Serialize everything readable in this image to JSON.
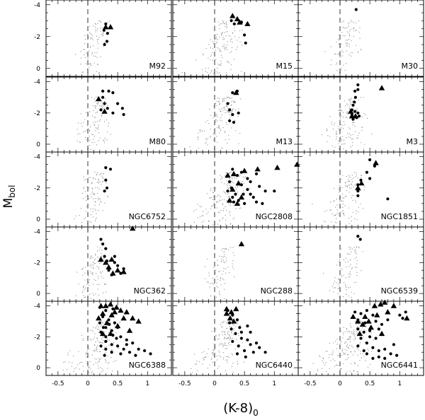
{
  "chart_data": {
    "type": "scatter",
    "xlabel_main": "(K-8)",
    "xlabel_sub": "0",
    "ylabel_main": "M",
    "ylabel_sub": "bol",
    "xlim": [
      -0.7,
      1.4
    ],
    "ylim": [
      0.5,
      -4.3
    ],
    "x_ticks": [
      -0.5,
      0,
      0.5,
      1
    ],
    "x_tick_labels": [
      "-0.5",
      "0",
      "0.5",
      "1"
    ],
    "y_ticks": [
      -4,
      -2,
      0
    ],
    "y_tick_labels": [
      "-4",
      "-2",
      "0"
    ],
    "reference_line_x": 0,
    "grid": false,
    "legend": "none",
    "series_styles": {
      "background_stars": "small grey dots",
      "variables_dot": "filled black circles",
      "variables_triangle": "filled black triangles"
    },
    "panels": [
      {
        "label": "M92",
        "cloud": 0.7,
        "tip_x": 0.2,
        "dots": [
          [
            0.3,
            -2.8
          ],
          [
            0.27,
            -2.4
          ],
          [
            0.33,
            -2.2
          ],
          [
            0.32,
            -1.7
          ],
          [
            0.28,
            -1.5
          ]
        ],
        "triangles": [
          [
            0.3,
            -2.6
          ],
          [
            0.38,
            -2.6
          ]
        ]
      },
      {
        "label": "M15",
        "cloud": 1.0,
        "tip_x": 0.25,
        "dots": [
          [
            0.28,
            -3.0
          ],
          [
            0.33,
            -2.8
          ],
          [
            0.45,
            -2.9
          ],
          [
            0.5,
            -2.1
          ],
          [
            0.52,
            -1.6
          ]
        ],
        "triangles": [
          [
            0.3,
            -3.3
          ],
          [
            0.38,
            -3.1
          ],
          [
            0.42,
            -2.9
          ],
          [
            0.55,
            -2.8
          ]
        ]
      },
      {
        "label": "M30",
        "cloud": 0.65,
        "tip_x": 0.2,
        "dots": [
          [
            0.27,
            -3.7
          ]
        ],
        "triangles": []
      },
      {
        "label": "M80",
        "cloud": 0.8,
        "tip_x": 0.2,
        "dots": [
          [
            0.25,
            -3.4
          ],
          [
            0.35,
            -3.4
          ],
          [
            0.42,
            -3.3
          ],
          [
            0.25,
            -3.0
          ],
          [
            0.28,
            -2.6
          ],
          [
            0.33,
            -2.3
          ],
          [
            0.5,
            -2.6
          ],
          [
            0.58,
            -2.3
          ],
          [
            0.6,
            -1.9
          ],
          [
            0.42,
            -2.0
          ],
          [
            0.22,
            -2.2
          ]
        ],
        "triangles": [
          [
            0.18,
            -2.9
          ],
          [
            0.28,
            -2.1
          ]
        ]
      },
      {
        "label": "M13",
        "cloud": 1.1,
        "tip_x": 0.22,
        "dots": [
          [
            0.3,
            -3.3
          ],
          [
            0.38,
            -3.4
          ],
          [
            0.22,
            -2.6
          ],
          [
            0.25,
            -2.2
          ],
          [
            0.3,
            -1.9
          ],
          [
            0.32,
            -1.4
          ],
          [
            0.25,
            -1.5
          ],
          [
            0.4,
            -2.0
          ]
        ],
        "triangles": [
          [
            0.36,
            -3.3
          ]
        ]
      },
      {
        "label": "M3",
        "cloud": 1.0,
        "tip_x": 0.22,
        "dots": [
          [
            0.3,
            -3.8
          ],
          [
            0.3,
            -3.5
          ],
          [
            0.25,
            -3.4
          ],
          [
            0.26,
            -3.0
          ],
          [
            0.24,
            -2.7
          ],
          [
            0.22,
            -2.5
          ],
          [
            0.2,
            -2.2
          ],
          [
            0.25,
            -2.1
          ],
          [
            0.3,
            -2.0
          ],
          [
            0.28,
            -1.7
          ],
          [
            0.22,
            -1.6
          ],
          [
            0.2,
            -1.9
          ],
          [
            0.32,
            -1.8
          ]
        ],
        "triangles": [
          [
            0.7,
            -3.6
          ],
          [
            0.18,
            -2.1
          ],
          [
            0.26,
            -1.8
          ],
          [
            0.2,
            -1.8
          ]
        ]
      },
      {
        "label": "NGC6752",
        "cloud": 0.75,
        "tip_x": 0.2,
        "dots": [
          [
            0.3,
            -3.3
          ],
          [
            0.38,
            -3.2
          ],
          [
            0.3,
            -2.5
          ],
          [
            0.32,
            -2.0
          ],
          [
            0.28,
            -1.8
          ]
        ],
        "triangles": []
      },
      {
        "label": "NGC2808",
        "cloud": 1.3,
        "tip_x": 0.35,
        "dots": [
          [
            0.3,
            -3.2
          ],
          [
            0.38,
            -2.8
          ],
          [
            0.45,
            -3.0
          ],
          [
            0.55,
            -2.6
          ],
          [
            0.6,
            -2.4
          ],
          [
            0.7,
            -2.9
          ],
          [
            0.75,
            -2.1
          ],
          [
            0.85,
            -1.8
          ],
          [
            1.0,
            -1.8
          ],
          [
            0.65,
            -1.4
          ],
          [
            0.7,
            -1.1
          ],
          [
            0.8,
            -1.0
          ],
          [
            0.55,
            -1.9
          ],
          [
            0.45,
            -2.2
          ],
          [
            0.35,
            -1.6
          ],
          [
            0.3,
            -1.4
          ],
          [
            0.25,
            -2.4
          ],
          [
            0.4,
            -1.2
          ],
          [
            0.5,
            -1.0
          ],
          [
            0.6,
            -1.6
          ],
          [
            0.28,
            -2.0
          ],
          [
            0.32,
            -1.1
          ],
          [
            0.22,
            -1.8
          ],
          [
            0.48,
            -1.6
          ]
        ],
        "triangles": [
          [
            0.22,
            -2.8
          ],
          [
            0.32,
            -2.9
          ],
          [
            0.5,
            -3.1
          ],
          [
            0.72,
            -3.2
          ],
          [
            1.05,
            -3.3
          ],
          [
            1.38,
            -3.5
          ],
          [
            0.4,
            -2.3
          ],
          [
            0.3,
            -1.9
          ],
          [
            0.45,
            -1.4
          ],
          [
            0.25,
            -1.2
          ],
          [
            0.38,
            -1.0
          ]
        ]
      },
      {
        "label": "NGC1851",
        "cloud": 0.9,
        "tip_x": 0.25,
        "dots": [
          [
            0.5,
            -3.8
          ],
          [
            0.45,
            -3.0
          ],
          [
            0.5,
            -2.6
          ],
          [
            0.58,
            -3.4
          ],
          [
            0.3,
            -2.2
          ],
          [
            0.3,
            -1.8
          ],
          [
            0.3,
            -1.5
          ],
          [
            0.35,
            -2.5
          ],
          [
            0.8,
            -1.3
          ]
        ],
        "triangles": [
          [
            0.6,
            -3.6
          ],
          [
            0.3,
            -2.0
          ],
          [
            0.36,
            -2.3
          ]
        ]
      },
      {
        "label": "NGC362",
        "cloud": 0.8,
        "tip_x": 0.25,
        "dots": [
          [
            0.22,
            -3.5
          ],
          [
            0.25,
            -3.2
          ],
          [
            0.3,
            -2.9
          ],
          [
            0.28,
            -2.4
          ],
          [
            0.32,
            -2.1
          ],
          [
            0.45,
            -2.0
          ],
          [
            0.5,
            -1.8
          ],
          [
            0.55,
            -1.3
          ],
          [
            0.4,
            -1.2
          ],
          [
            0.35,
            -1.5
          ],
          [
            0.6,
            -1.6
          ],
          [
            0.45,
            -2.4
          ]
        ],
        "triangles": [
          [
            0.75,
            -4.2
          ],
          [
            0.22,
            -2.2
          ],
          [
            0.3,
            -2.0
          ],
          [
            0.4,
            -2.2
          ],
          [
            0.35,
            -1.7
          ],
          [
            0.5,
            -1.5
          ],
          [
            0.6,
            -1.4
          ],
          [
            0.42,
            -1.3
          ]
        ]
      },
      {
        "label": "NGC288",
        "cloud": 0.6,
        "tip_x": 0.2,
        "dots": [],
        "triangles": [
          [
            0.45,
            -3.2
          ]
        ]
      },
      {
        "label": "NGC6539",
        "cloud": 0.7,
        "tip_x": 0.25,
        "dots": [
          [
            0.3,
            -3.7
          ],
          [
            0.34,
            -3.5
          ]
        ],
        "triangles": []
      },
      {
        "label": "NGC6388",
        "cloud": 1.35,
        "tip_x": 0.35,
        "dots": [
          [
            0.2,
            -3.9
          ],
          [
            0.3,
            -3.7
          ],
          [
            0.42,
            -3.8
          ],
          [
            0.25,
            -3.3
          ],
          [
            0.35,
            -3.1
          ],
          [
            0.45,
            -2.9
          ],
          [
            0.2,
            -2.9
          ],
          [
            0.3,
            -2.6
          ],
          [
            0.4,
            -2.4
          ],
          [
            0.5,
            -2.6
          ],
          [
            0.22,
            -2.3
          ],
          [
            0.3,
            -2.0
          ],
          [
            0.42,
            -2.1
          ],
          [
            0.55,
            -2.0
          ],
          [
            0.65,
            -1.8
          ],
          [
            0.75,
            -1.6
          ],
          [
            0.3,
            -1.7
          ],
          [
            0.4,
            -1.5
          ],
          [
            0.5,
            -1.4
          ],
          [
            0.6,
            -1.2
          ],
          [
            0.7,
            -1.0
          ],
          [
            0.85,
            -1.2
          ],
          [
            0.95,
            -1.1
          ],
          [
            1.05,
            -0.9
          ],
          [
            0.3,
            -1.2
          ],
          [
            0.4,
            -1.0
          ],
          [
            0.55,
            -0.9
          ],
          [
            0.22,
            -1.4
          ],
          [
            0.28,
            -0.8
          ],
          [
            0.65,
            -1.5
          ],
          [
            0.48,
            -1.9
          ],
          [
            0.36,
            -2.8
          ],
          [
            0.26,
            -2.6
          ],
          [
            0.8,
            -0.8
          ]
        ],
        "triangles": [
          [
            0.22,
            -4.0
          ],
          [
            0.3,
            -4.0
          ],
          [
            0.38,
            -4.1
          ],
          [
            0.48,
            -3.9
          ],
          [
            0.55,
            -3.7
          ],
          [
            0.65,
            -3.6
          ],
          [
            0.75,
            -3.2
          ],
          [
            0.85,
            -3.0
          ],
          [
            0.25,
            -3.5
          ],
          [
            0.4,
            -3.4
          ],
          [
            0.6,
            -3.2
          ],
          [
            0.18,
            -3.2
          ],
          [
            0.32,
            -2.9
          ],
          [
            0.5,
            -2.7
          ],
          [
            0.7,
            -2.4
          ],
          [
            0.25,
            -2.2
          ],
          [
            0.38,
            -2.2
          ],
          [
            0.45,
            -3.6
          ]
        ]
      },
      {
        "label": "NGC6440",
        "cloud": 1.2,
        "tip_x": 0.3,
        "dots": [
          [
            0.22,
            -3.7
          ],
          [
            0.3,
            -3.4
          ],
          [
            0.38,
            -3.1
          ],
          [
            0.25,
            -2.9
          ],
          [
            0.42,
            -2.6
          ],
          [
            0.55,
            -2.7
          ],
          [
            0.6,
            -2.3
          ],
          [
            0.35,
            -2.2
          ],
          [
            0.45,
            -1.9
          ],
          [
            0.55,
            -1.8
          ],
          [
            0.6,
            -1.5
          ],
          [
            0.7,
            -1.6
          ],
          [
            0.4,
            -1.4
          ],
          [
            0.5,
            -1.1
          ],
          [
            0.65,
            -1.0
          ],
          [
            0.75,
            -1.3
          ],
          [
            0.85,
            -1.0
          ],
          [
            0.3,
            -1.7
          ],
          [
            0.38,
            -0.9
          ],
          [
            0.52,
            -0.7
          ],
          [
            0.28,
            -2.5
          ],
          [
            0.45,
            -2.3
          ]
        ],
        "triangles": [
          [
            0.2,
            -3.5
          ],
          [
            0.26,
            -3.2
          ],
          [
            0.32,
            -3.0
          ],
          [
            0.2,
            -3.8
          ],
          [
            0.28,
            -3.6
          ],
          [
            0.36,
            -3.8
          ]
        ]
      },
      {
        "label": "NGC6441",
        "cloud": 1.35,
        "tip_x": 0.35,
        "dots": [
          [
            0.25,
            -3.6
          ],
          [
            0.35,
            -3.5
          ],
          [
            0.45,
            -3.7
          ],
          [
            0.55,
            -3.4
          ],
          [
            0.3,
            -3.1
          ],
          [
            0.42,
            -2.9
          ],
          [
            0.6,
            -3.0
          ],
          [
            0.7,
            -2.8
          ],
          [
            0.8,
            -3.1
          ],
          [
            0.3,
            -2.5
          ],
          [
            0.4,
            -2.3
          ],
          [
            0.5,
            -2.4
          ],
          [
            0.65,
            -2.5
          ],
          [
            0.35,
            -1.9
          ],
          [
            0.45,
            -1.6
          ],
          [
            0.55,
            -1.3
          ],
          [
            0.65,
            -1.1
          ],
          [
            0.75,
            -1.2
          ],
          [
            0.85,
            -0.9
          ],
          [
            0.45,
            -0.9
          ],
          [
            0.55,
            -0.6
          ],
          [
            0.65,
            -0.7
          ],
          [
            0.9,
            -1.5
          ],
          [
            1.0,
            -3.4
          ],
          [
            1.1,
            -3.6
          ],
          [
            1.05,
            -3.2
          ],
          [
            0.5,
            -2.0
          ],
          [
            0.3,
            -1.4
          ],
          [
            0.4,
            -1.1
          ],
          [
            0.6,
            -1.9
          ],
          [
            0.75,
            -0.6
          ],
          [
            0.95,
            -0.8
          ]
        ],
        "triangles": [
          [
            0.22,
            -3.3
          ],
          [
            0.3,
            -3.0
          ],
          [
            0.38,
            -2.8
          ],
          [
            0.48,
            -3.0
          ],
          [
            0.58,
            -4.0
          ],
          [
            0.68,
            -4.1
          ],
          [
            0.75,
            -4.3
          ],
          [
            0.9,
            -4.0
          ],
          [
            0.8,
            -3.6
          ],
          [
            0.62,
            -3.4
          ],
          [
            0.52,
            -2.6
          ],
          [
            0.42,
            -3.3
          ],
          [
            0.7,
            -2.2
          ],
          [
            1.12,
            -3.2
          ],
          [
            0.33,
            -2.2
          ]
        ]
      }
    ]
  }
}
